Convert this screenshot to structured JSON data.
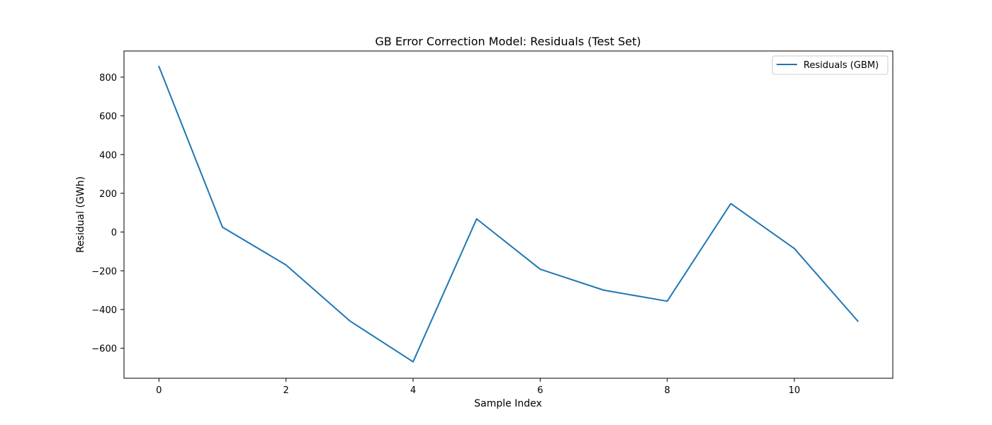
{
  "chart_data": {
    "type": "line",
    "title": "GB Error Correction Model: Residuals (Test Set)",
    "xlabel": "Sample Index",
    "ylabel": "Residual (GWh)",
    "xlim": [
      -0.55,
      11.55
    ],
    "ylim": [
      -755,
      935
    ],
    "x_ticks": [
      0,
      2,
      4,
      6,
      8,
      10
    ],
    "y_ticks": [
      -600,
      -400,
      -200,
      0,
      200,
      400,
      600,
      800
    ],
    "grid": false,
    "legend_position": "top-right",
    "series": [
      {
        "name": "Residuals (GBM)",
        "color": "#1f77b4",
        "x": [
          0,
          1,
          2,
          3,
          4,
          5,
          6,
          7,
          8,
          9,
          10,
          11
        ],
        "y": [
          855,
          25,
          -170,
          -458,
          -670,
          68,
          -192,
          -300,
          -357,
          147,
          -85,
          -460
        ]
      }
    ]
  }
}
